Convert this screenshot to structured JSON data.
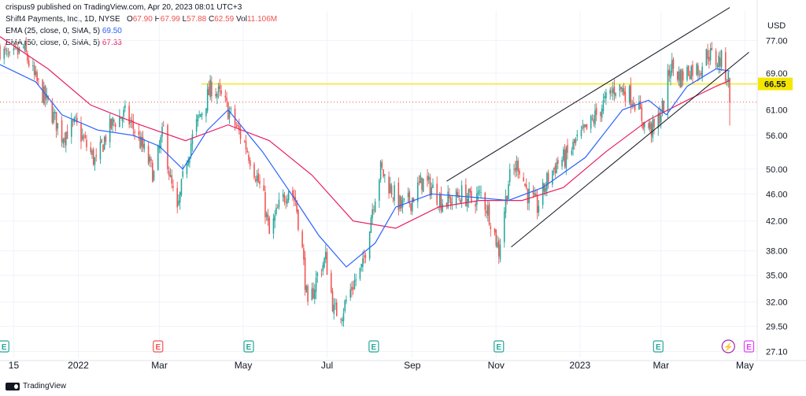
{
  "header": {
    "publisher": "crispus9 published on TradingView.com, Apr 20, 2023 08:01 UTC+3",
    "symbol": "Shift4 Payments, Inc., 1D, NYSE",
    "ohlc": {
      "o_label": "O",
      "o": "67.90",
      "h_label": "H",
      "h": "67.99",
      "l_label": "L",
      "l": "57.88",
      "c_label": "C",
      "c": "62.59",
      "vol_label": "Vol",
      "vol": "11.106M"
    },
    "ema25": {
      "label": "EMA (25, close, 0, SMA, 5)",
      "value": "69.50"
    },
    "ema50": {
      "label": "EMA (50, close, 0, SMA, 5)",
      "value": "67.33"
    }
  },
  "footer": {
    "brand": "TradingView"
  },
  "colors": {
    "up": "#26a69a",
    "down": "#ef5350",
    "ema25": "#2962ff",
    "ema50": "#e91e63",
    "level": "#f5e600",
    "trend": "#131722",
    "text": "#131722",
    "grid": "#f0f3fa"
  },
  "chart_data": {
    "type": "candlestick",
    "currency": "USD",
    "y_axis_scale": "log",
    "ylim": [
      26.5,
      85
    ],
    "y_ticks": [
      "77.00",
      "69.00",
      "61.00",
      "56.00",
      "50.00",
      "46.00",
      "42.00",
      "38.00",
      "35.00",
      "32.00",
      "29.50",
      "27.10"
    ],
    "x_ticks": [
      "15",
      "2022",
      "Mar",
      "May",
      "Jul",
      "Sep",
      "Nov",
      "2023",
      "Mar",
      "May"
    ],
    "x_domain": [
      "2021-11-05",
      "2023-05-10"
    ],
    "tick_dates": [
      "2021-11-15",
      "2022-01-01",
      "2022-03-01",
      "2022-05-01",
      "2022-07-01",
      "2022-09-01",
      "2022-11-01",
      "2023-01-01",
      "2023-03-01",
      "2023-05-01"
    ],
    "level_line": {
      "value": 66.55,
      "label": "66.55"
    },
    "last_close_line": 62.59,
    "close_path": [
      [
        "2021-11-05",
        75
      ],
      [
        "2021-11-12",
        72
      ],
      [
        "2021-11-22",
        75
      ],
      [
        "2021-11-30",
        68
      ],
      [
        "2021-12-10",
        62
      ],
      [
        "2021-12-20",
        56
      ],
      [
        "2021-12-30",
        58
      ],
      [
        "2022-01-07",
        54
      ],
      [
        "2022-01-14",
        51
      ],
      [
        "2022-01-21",
        56
      ],
      [
        "2022-01-28",
        59
      ],
      [
        "2022-02-04",
        60
      ],
      [
        "2022-02-11",
        57
      ],
      [
        "2022-02-18",
        53
      ],
      [
        "2022-02-25",
        49
      ],
      [
        "2022-03-04",
        57
      ],
      [
        "2022-03-09",
        48
      ],
      [
        "2022-03-14",
        43
      ],
      [
        "2022-03-21",
        52
      ],
      [
        "2022-03-28",
        58
      ],
      [
        "2022-04-04",
        63
      ],
      [
        "2022-04-08",
        66
      ],
      [
        "2022-04-14",
        64
      ],
      [
        "2022-04-20",
        61
      ],
      [
        "2022-04-27",
        57
      ],
      [
        "2022-05-03",
        54
      ],
      [
        "2022-05-09",
        50
      ],
      [
        "2022-05-16",
        45
      ],
      [
        "2022-05-20",
        40
      ],
      [
        "2022-05-27",
        44
      ],
      [
        "2022-06-03",
        47
      ],
      [
        "2022-06-08",
        45
      ],
      [
        "2022-06-13",
        38
      ],
      [
        "2022-06-17",
        31
      ],
      [
        "2022-06-24",
        35
      ],
      [
        "2022-06-30",
        37
      ],
      [
        "2022-07-06",
        31
      ],
      [
        "2022-07-12",
        31
      ],
      [
        "2022-07-20",
        34
      ],
      [
        "2022-07-27",
        36
      ],
      [
        "2022-08-03",
        44
      ],
      [
        "2022-08-09",
        50
      ],
      [
        "2022-08-16",
        47
      ],
      [
        "2022-08-24",
        44
      ],
      [
        "2022-08-31",
        45
      ],
      [
        "2022-09-08",
        48
      ],
      [
        "2022-09-15",
        47
      ],
      [
        "2022-09-22",
        45
      ],
      [
        "2022-09-30",
        45
      ],
      [
        "2022-10-07",
        46
      ],
      [
        "2022-10-14",
        45
      ],
      [
        "2022-10-21",
        46
      ],
      [
        "2022-10-27",
        43
      ],
      [
        "2022-11-03",
        38
      ],
      [
        "2022-11-10",
        48
      ],
      [
        "2022-11-17",
        51
      ],
      [
        "2022-11-24",
        46
      ],
      [
        "2022-12-01",
        44
      ],
      [
        "2022-12-08",
        48
      ],
      [
        "2022-12-15",
        51
      ],
      [
        "2022-12-22",
        52
      ],
      [
        "2022-12-30",
        55
      ],
      [
        "2023-01-06",
        57
      ],
      [
        "2023-01-13",
        60
      ],
      [
        "2023-01-20",
        63
      ],
      [
        "2023-01-27",
        66
      ],
      [
        "2023-02-03",
        65
      ],
      [
        "2023-02-10",
        63
      ],
      [
        "2023-02-17",
        58
      ],
      [
        "2023-02-24",
        57
      ],
      [
        "2023-03-03",
        62
      ],
      [
        "2023-03-08",
        71
      ],
      [
        "2023-03-15",
        68
      ],
      [
        "2023-03-22",
        70
      ],
      [
        "2023-03-29",
        70
      ],
      [
        "2023-04-04",
        74
      ],
      [
        "2023-04-10",
        72
      ],
      [
        "2023-04-14",
        72
      ],
      [
        "2023-04-17",
        69
      ],
      [
        "2023-04-19",
        67.9
      ],
      [
        "2023-04-20",
        62.59
      ]
    ],
    "ema25_path": [
      [
        "2021-11-05",
        71
      ],
      [
        "2021-12-01",
        67
      ],
      [
        "2021-12-20",
        60
      ],
      [
        "2022-01-15",
        57
      ],
      [
        "2022-02-10",
        56
      ],
      [
        "2022-03-01",
        54
      ],
      [
        "2022-03-18",
        50
      ],
      [
        "2022-04-05",
        57
      ],
      [
        "2022-04-20",
        61
      ],
      [
        "2022-05-15",
        53
      ],
      [
        "2022-06-05",
        46
      ],
      [
        "2022-06-25",
        40
      ],
      [
        "2022-07-15",
        36
      ],
      [
        "2022-08-05",
        39
      ],
      [
        "2022-08-20",
        44
      ],
      [
        "2022-09-15",
        46
      ],
      [
        "2022-10-15",
        45.5
      ],
      [
        "2022-11-10",
        45
      ],
      [
        "2022-12-05",
        47
      ],
      [
        "2023-01-05",
        52
      ],
      [
        "2023-02-01",
        61
      ],
      [
        "2023-02-20",
        63
      ],
      [
        "2023-03-05",
        60
      ],
      [
        "2023-03-20",
        66
      ],
      [
        "2023-04-10",
        70
      ],
      [
        "2023-04-20",
        69.5
      ]
    ],
    "ema50_path": [
      [
        "2021-11-05",
        78
      ],
      [
        "2021-12-10",
        70
      ],
      [
        "2022-01-10",
        62
      ],
      [
        "2022-02-15",
        58
      ],
      [
        "2022-03-20",
        55
      ],
      [
        "2022-04-20",
        58
      ],
      [
        "2022-05-20",
        55
      ],
      [
        "2022-06-20",
        49
      ],
      [
        "2022-07-20",
        42
      ],
      [
        "2022-08-20",
        41
      ],
      [
        "2022-09-20",
        44
      ],
      [
        "2022-10-20",
        45
      ],
      [
        "2022-11-20",
        45
      ],
      [
        "2022-12-20",
        47
      ],
      [
        "2023-01-20",
        53
      ],
      [
        "2023-02-20",
        59
      ],
      [
        "2023-03-20",
        63
      ],
      [
        "2023-04-10",
        66
      ],
      [
        "2023-04-20",
        67.33
      ]
    ],
    "channel_upper": [
      [
        "2022-09-26",
        48
      ],
      [
        "2023-04-20",
        86
      ]
    ],
    "channel_lower": [
      [
        "2022-11-12",
        38.5
      ],
      [
        "2023-05-04",
        74
      ]
    ],
    "events": [
      {
        "date": "2021-11-08",
        "type": "earnings",
        "label": "E"
      },
      {
        "date": "2022-02-28",
        "type": "earnings-down",
        "label": "E"
      },
      {
        "date": "2022-05-05",
        "type": "earnings",
        "label": "E"
      },
      {
        "date": "2022-08-04",
        "type": "earnings",
        "label": "E"
      },
      {
        "date": "2022-11-03",
        "type": "earnings",
        "label": "E"
      },
      {
        "date": "2023-02-27",
        "type": "earnings",
        "label": "E"
      },
      {
        "date": "2023-04-19",
        "type": "flash",
        "label": "⚡"
      },
      {
        "date": "2023-05-04",
        "type": "upcoming",
        "label": "E"
      }
    ]
  }
}
